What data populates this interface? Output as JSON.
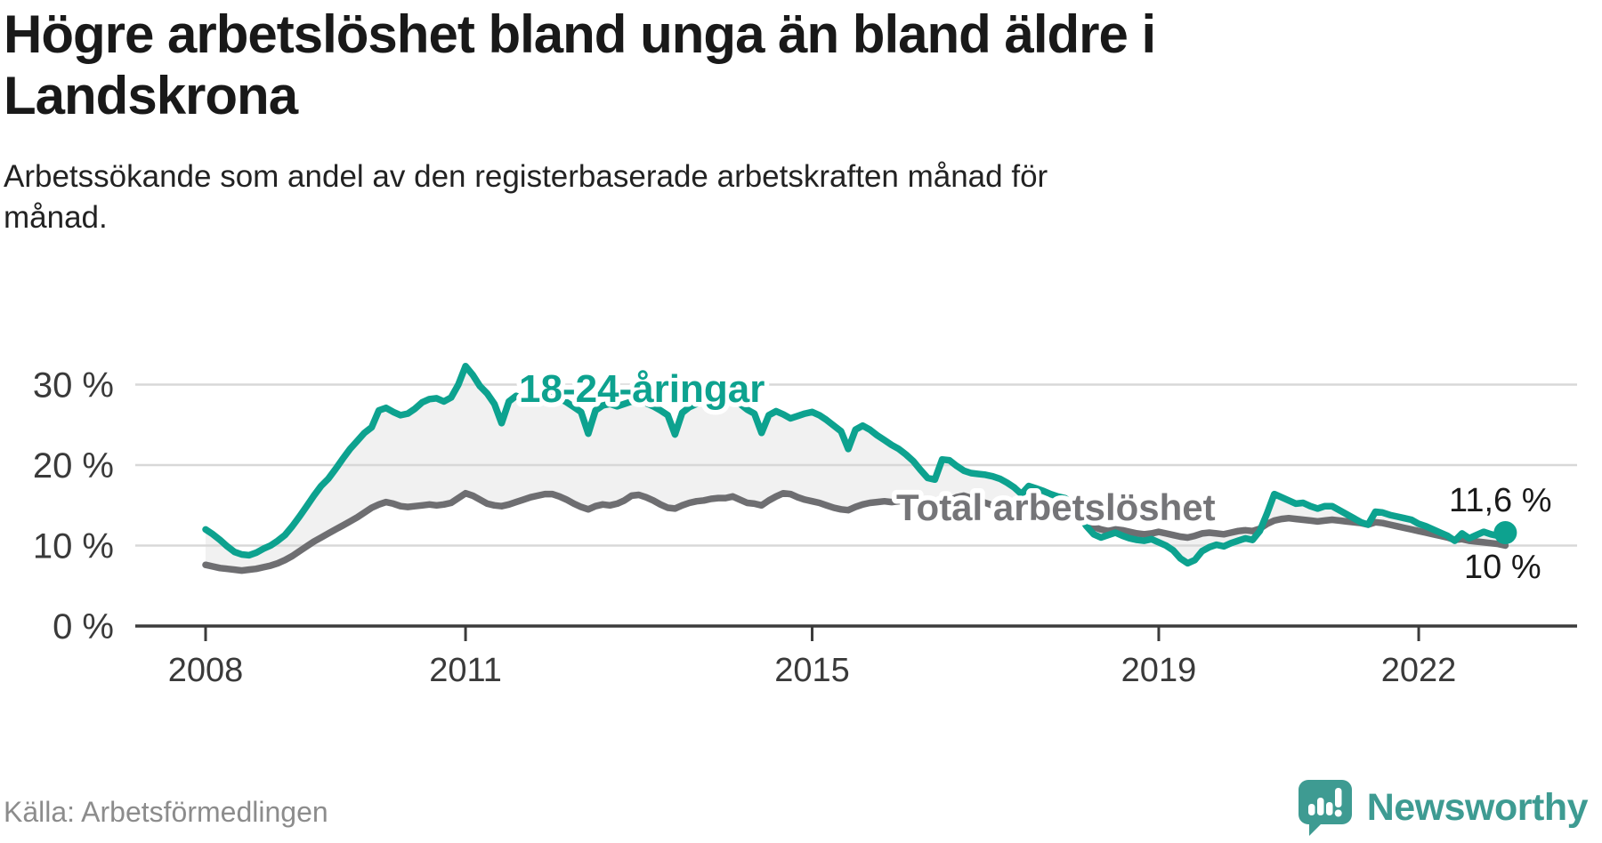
{
  "header": {
    "title": "Högre arbetslöshet bland unga än bland äldre i Landskrona",
    "subtitle": "Arbetssökande som andel av den registerbaserade arbetskraften månad för månad."
  },
  "footer": {
    "source": "Källa: Arbetsförmedlingen",
    "brand": "Newsworthy"
  },
  "colors": {
    "youth_line": "#0da28f",
    "total_line": "#6e6e71",
    "grid_line": "#d8d8d8",
    "axis_line": "#3b3b3b",
    "area_fill": "#f1f1f1",
    "end_label_text": "#1a1a1a",
    "brand_teal": "#3e9b92",
    "total_label_text": "#757578"
  },
  "chart_data": {
    "type": "line",
    "title": "Högre arbetslöshet bland unga än bland äldre i Landskrona",
    "subtitle": "Arbetssökande som andel av den registerbaserade arbetskraften månad för månad.",
    "frequency": "monthly",
    "start": "2008-01",
    "end": "2023-01",
    "grid": true,
    "legend_position": "inline-labels",
    "ylim": [
      0,
      33
    ],
    "y_ticks": [
      0,
      10,
      20,
      30
    ],
    "y_tick_labels": [
      "0 %",
      "10 %",
      "20 %",
      "30 %"
    ],
    "x_ticks": [
      2008,
      2011,
      2015,
      2019,
      2022
    ],
    "x_tick_labels": [
      "2008",
      "2011",
      "2015",
      "2019",
      "2022"
    ],
    "series": [
      {
        "name": "18-24-åringar",
        "color": "#0da28f",
        "end_label": "11,6 %",
        "last_value": 11.6,
        "values": [
          12,
          11.4,
          10.7,
          9.9,
          9.2,
          8.9,
          8.8,
          9.1,
          9.6,
          10,
          10.6,
          11.3,
          12.4,
          13.6,
          14.9,
          16.2,
          17.4,
          18.3,
          19.5,
          20.8,
          22,
          23,
          24,
          24.7,
          26.8,
          27.1,
          26.6,
          26.2,
          26.4,
          27,
          27.8,
          28.2,
          28.3,
          27.9,
          28.4,
          30,
          32.3,
          31.2,
          29.8,
          28.9,
          27.6,
          25.2,
          27.9,
          28.6,
          28.2,
          27.7,
          28,
          28.3,
          28.6,
          28.3,
          27.8,
          27.2,
          26.6,
          23.9,
          26.8,
          27.4,
          27.6,
          27.3,
          27.6,
          27.9,
          28,
          27.7,
          27.3,
          26.8,
          26.2,
          23.8,
          26.5,
          27.2,
          27.6,
          27.8,
          28.2,
          28.5,
          29,
          28.4,
          27.6,
          26.9,
          26.4,
          24,
          26.2,
          26.7,
          26.3,
          25.8,
          26.1,
          26.4,
          26.6,
          26.2,
          25.6,
          24.9,
          24.2,
          22,
          24.4,
          24.9,
          24.4,
          23.7,
          23.1,
          22.5,
          22,
          21.3,
          20.5,
          19.4,
          18.4,
          18.2,
          20.7,
          20.6,
          19.9,
          19.3,
          19,
          18.9,
          18.8,
          18.6,
          18.3,
          17.8,
          17.2,
          16.4,
          17.4,
          17.1,
          16.8,
          16.4,
          16.1,
          15.9,
          15.2,
          13.8,
          12.4,
          11.4,
          11,
          11.3,
          11.6,
          11.2,
          10.9,
          10.7,
          10.6,
          10.8,
          10.4,
          10,
          9.4,
          8.4,
          7.8,
          8.2,
          9.3,
          9.8,
          10.1,
          9.9,
          10.3,
          10.6,
          10.9,
          10.7,
          11.8,
          14,
          16.4,
          16,
          15.6,
          15.2,
          15.3,
          14.9,
          14.6,
          14.9,
          14.9,
          14.4,
          13.9,
          13.4,
          12.9,
          12.6,
          14.2,
          14.1,
          13.8,
          13.6,
          13.4,
          13.2,
          12.7,
          12.4,
          12,
          11.6,
          11.2,
          10.6,
          11.5,
          10.9,
          11.3,
          11.7,
          11.4,
          11.2,
          11.6
        ]
      },
      {
        "name": "Total arbetslöshet",
        "color": "#6e6e71",
        "end_label": "10 %",
        "last_value": 10,
        "values": [
          7.6,
          7.4,
          7.2,
          7.1,
          7,
          6.9,
          7,
          7.1,
          7.3,
          7.5,
          7.8,
          8.2,
          8.7,
          9.3,
          9.9,
          10.5,
          11,
          11.5,
          12,
          12.5,
          13,
          13.5,
          14.1,
          14.7,
          15.1,
          15.4,
          15.2,
          14.9,
          14.8,
          14.9,
          15,
          15.1,
          15,
          15.1,
          15.3,
          15.9,
          16.5,
          16.2,
          15.7,
          15.2,
          15,
          14.9,
          15.1,
          15.4,
          15.7,
          16,
          16.2,
          16.4,
          16.4,
          16.1,
          15.7,
          15.2,
          14.8,
          14.5,
          14.9,
          15.1,
          15,
          15.2,
          15.6,
          16.2,
          16.3,
          16,
          15.6,
          15.1,
          14.7,
          14.6,
          15,
          15.3,
          15.5,
          15.6,
          15.8,
          15.9,
          15.9,
          16.1,
          15.7,
          15.3,
          15.2,
          15,
          15.6,
          16.1,
          16.5,
          16.4,
          16,
          15.7,
          15.5,
          15.3,
          15,
          14.7,
          14.5,
          14.4,
          14.8,
          15.1,
          15.3,
          15.4,
          15.5,
          15.4,
          15.5,
          15.7,
          15.4,
          15.1,
          14.9,
          14.8,
          15.2,
          15.6,
          16,
          16.2,
          15.9,
          15.6,
          15.3,
          15,
          14.7,
          14.4,
          14.2,
          14.1,
          14.4,
          14.6,
          14.5,
          14.3,
          14.1,
          13.9,
          13.5,
          13.1,
          12.7,
          12.3,
          12,
          11.8,
          12,
          11.9,
          11.7,
          11.5,
          11.4,
          11.5,
          11.7,
          11.5,
          11.3,
          11.1,
          11,
          11.2,
          11.5,
          11.6,
          11.5,
          11.4,
          11.6,
          11.8,
          11.9,
          11.8,
          12.1,
          12.7,
          13.1,
          13.3,
          13.4,
          13.3,
          13.2,
          13.1,
          13,
          13.1,
          13.2,
          13.1,
          13,
          12.9,
          12.8,
          12.6,
          12.9,
          12.8,
          12.6,
          12.4,
          12.2,
          12,
          11.8,
          11.6,
          11.4,
          11.2,
          11,
          10.7,
          10.8,
          10.6,
          10.5,
          10.4,
          10.3,
          10.2,
          10
        ]
      }
    ]
  }
}
